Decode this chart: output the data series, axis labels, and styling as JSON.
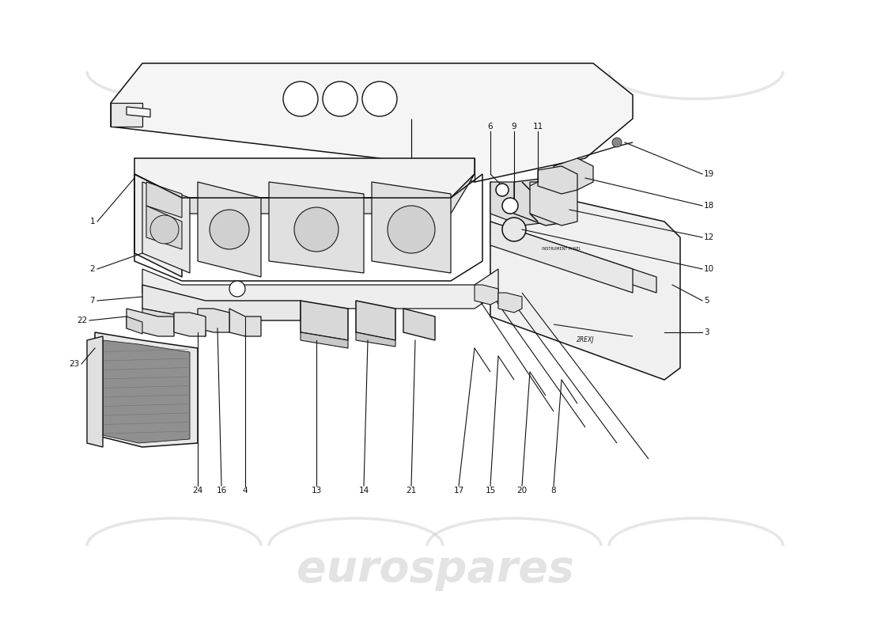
{
  "bg_color": "#ffffff",
  "wm_color": "#c8c8c8",
  "wm_text": "eurospares",
  "lc": "#111111",
  "lw": 1.1,
  "fig_w": 11.0,
  "fig_h": 8.0,
  "dpi": 100
}
